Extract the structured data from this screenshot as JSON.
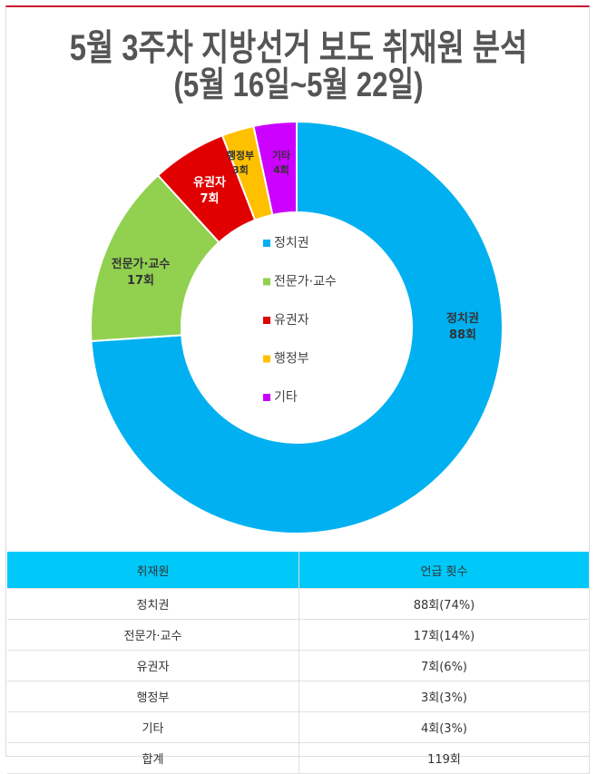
{
  "title": "5월 3주차 지방선거 보도 취재원 분석",
  "subtitle": "(5월 16일~5월 22일)",
  "chart_data": {
    "type": "pie",
    "donut": true,
    "legend_position": "center",
    "categories": [
      "정치권",
      "전문가·교수",
      "유권자",
      "행정부",
      "기타"
    ],
    "values": [
      88,
      17,
      7,
      3,
      4
    ],
    "unit": "회",
    "colors": [
      "#00b0f0",
      "#92d050",
      "#e00000",
      "#ffc000",
      "#cc00ff"
    ],
    "data_labels": [
      "88회",
      "17회",
      "7회",
      "3회",
      "4회"
    ]
  },
  "table": {
    "headers": [
      "취재원",
      "언급 횟수"
    ],
    "rows": [
      [
        "정치권",
        "88회(74%)"
      ],
      [
        "전문가·교수",
        "17회(14%)"
      ],
      [
        "유권자",
        "7회(6%)"
      ],
      [
        "행정부",
        "3회(3%)"
      ],
      [
        "기타",
        "4회(3%)"
      ],
      [
        "합계",
        "119회"
      ]
    ]
  }
}
